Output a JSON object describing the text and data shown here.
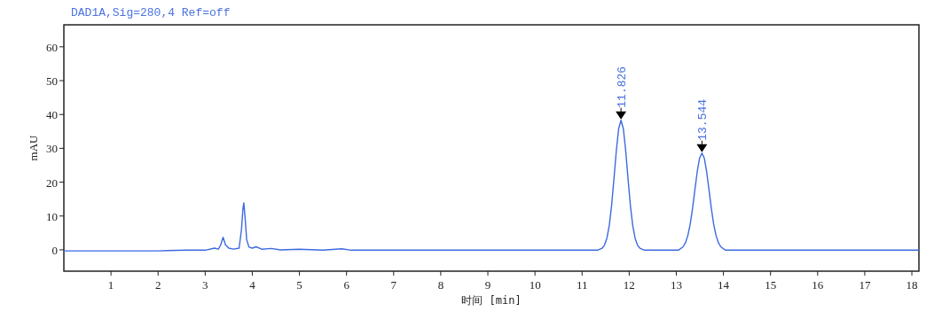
{
  "chart_data": {
    "type": "line",
    "title": "DAD1A,Sig=280,4  Ref=off",
    "xlabel": "时间 [min]",
    "ylabel": "mAU",
    "xlim": [
      0,
      18.15
    ],
    "ylim": [
      -6.3,
      66.5
    ],
    "xticks": [
      1,
      2,
      3,
      4,
      5,
      6,
      7,
      8,
      9,
      10,
      11,
      12,
      13,
      14,
      15,
      16,
      17,
      18
    ],
    "yticks": [
      0,
      10,
      20,
      30,
      40,
      50,
      60
    ],
    "grid": false,
    "marker": "none",
    "line_style": "solid",
    "series": [
      {
        "color": "#3d6ae0",
        "x": [
          0,
          1,
          2,
          2.2,
          2.6,
          3.0,
          3.2,
          3.28,
          3.33,
          3.38,
          3.43,
          3.5,
          3.6,
          3.72,
          3.77,
          3.8,
          3.82,
          3.85,
          3.88,
          3.93,
          4.0,
          4.08,
          4.2,
          4.4,
          4.6,
          5.0,
          5.5,
          5.9,
          6.1,
          7,
          8,
          9,
          10,
          11,
          11.326,
          11.426,
          11.476,
          11.526,
          11.576,
          11.626,
          11.676,
          11.726,
          11.776,
          11.826,
          11.876,
          11.926,
          11.976,
          12.026,
          12.076,
          12.126,
          12.176,
          12.226,
          12.326,
          12.6,
          13.044,
          13.144,
          13.194,
          13.244,
          13.294,
          13.344,
          13.394,
          13.444,
          13.494,
          13.544,
          13.594,
          13.644,
          13.694,
          13.744,
          13.794,
          13.844,
          13.894,
          13.944,
          14.044,
          15,
          16,
          17,
          18.15
        ],
        "values": [
          -0.3,
          -0.3,
          -0.3,
          -0.2,
          -0.1,
          -0.1,
          0.5,
          0.2,
          1.5,
          3.7,
          1.5,
          0.5,
          0.2,
          0.5,
          6,
          12,
          13.9,
          9,
          3,
          0.8,
          0.5,
          0.9,
          0.2,
          0.4,
          0,
          0.2,
          -0.1,
          0.3,
          -0.1,
          -0.1,
          -0.1,
          -0.1,
          -0.1,
          -0.1,
          -0.1,
          0.5,
          1.4,
          3.4,
          7.1,
          13.0,
          20.9,
          29.2,
          35.8,
          38.3,
          35.8,
          29.2,
          20.9,
          13.0,
          7.1,
          3.4,
          1.4,
          0.5,
          -0.1,
          -0.1,
          -0.1,
          0.9,
          2.1,
          4.2,
          7.5,
          12.2,
          17.7,
          23.1,
          27.1,
          28.6,
          27.1,
          23.1,
          17.7,
          12.2,
          7.5,
          4.2,
          2.1,
          0.9,
          -0.1,
          -0.1,
          -0.1,
          -0.1,
          -0.1
        ]
      }
    ],
    "annotations": [
      {
        "text": "11.826",
        "x": 11.826,
        "y": 38.3
      },
      {
        "text": "13.544",
        "x": 13.544,
        "y": 28.6
      }
    ]
  }
}
